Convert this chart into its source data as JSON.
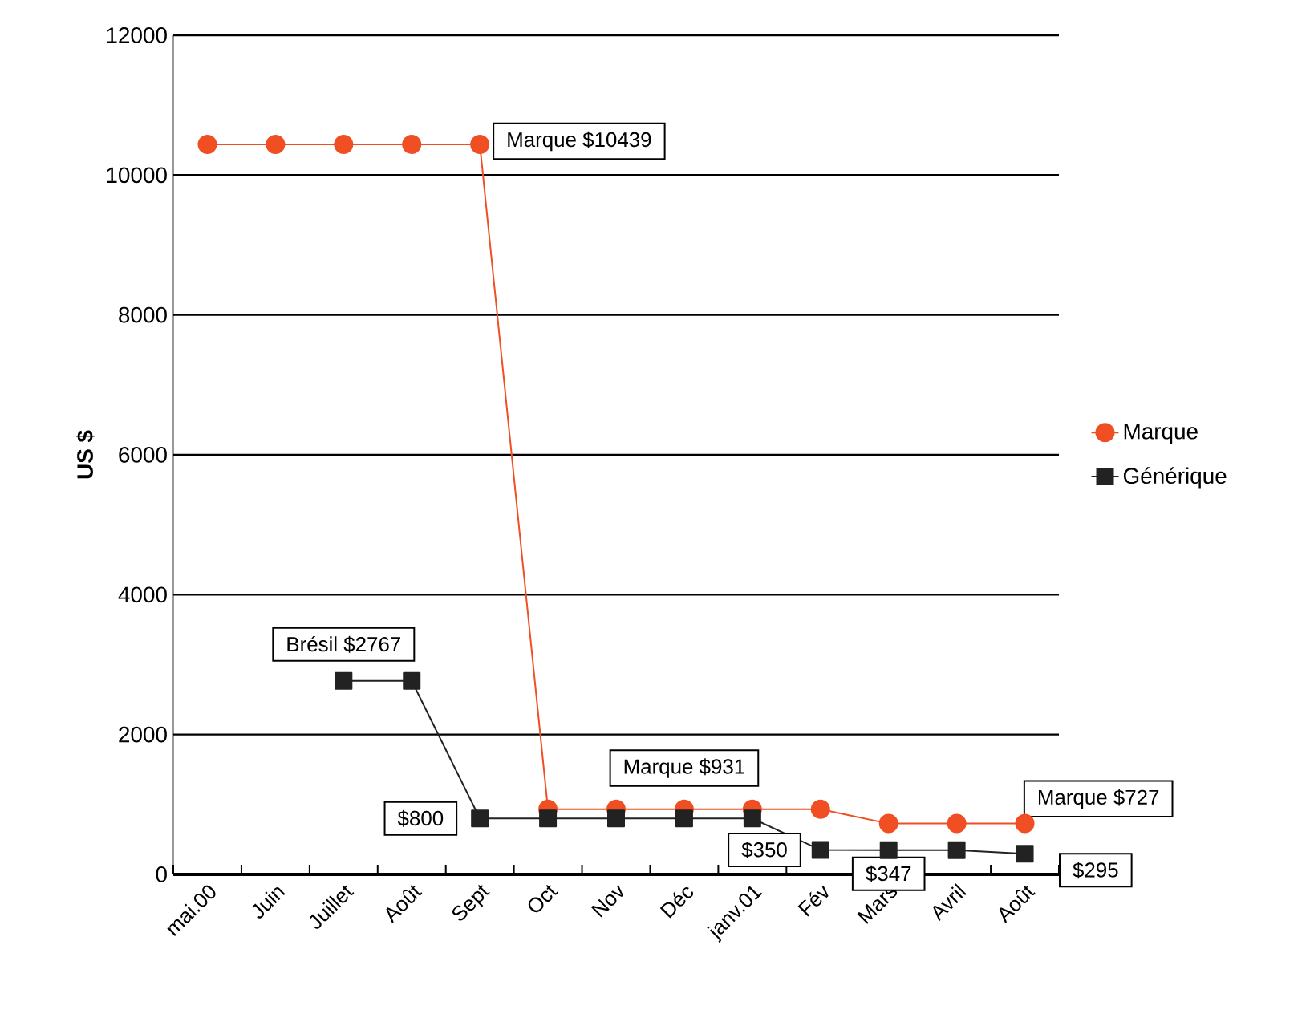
{
  "chart_data": {
    "type": "line",
    "ylabel": "US $",
    "categories": [
      "mai.00",
      "Juin",
      "Juillet",
      "Août",
      "Sept",
      "Oct",
      "Nov",
      "Déc",
      "janv.01",
      "Fév",
      "Mars",
      "Avril",
      "Août"
    ],
    "series": [
      {
        "name": "Marque",
        "color": "#f04e23",
        "marker": "circle",
        "values": [
          10439,
          10439,
          10439,
          10439,
          10439,
          931,
          931,
          931,
          931,
          931,
          727,
          727,
          727
        ]
      },
      {
        "name": "Générique",
        "color": "#222222",
        "marker": "square",
        "values": [
          null,
          null,
          2767,
          2767,
          800,
          800,
          800,
          800,
          800,
          350,
          347,
          347,
          295
        ]
      }
    ],
    "ylim": [
      0,
      12000
    ],
    "yticks": [
      0,
      2000,
      4000,
      6000,
      8000,
      10000,
      12000
    ],
    "grid": "y",
    "legend": "right",
    "line_style": "solid",
    "annotations": [
      {
        "text": "Marque $10439",
        "x": "Sept",
        "y": 10439
      },
      {
        "text": "Marque $931",
        "x": "Déc",
        "y": 931
      },
      "Marque $727",
      {
        "text": "Brésil $2767",
        "x": "Juillet",
        "y": 2767
      },
      {
        "text": "$800",
        "x": "Sept",
        "y": 800
      },
      {
        "text": "$350",
        "x": "Fév",
        "y": 350
      },
      {
        "text": "$347",
        "x": "Mars",
        "y": 347
      },
      "$295"
    ]
  }
}
